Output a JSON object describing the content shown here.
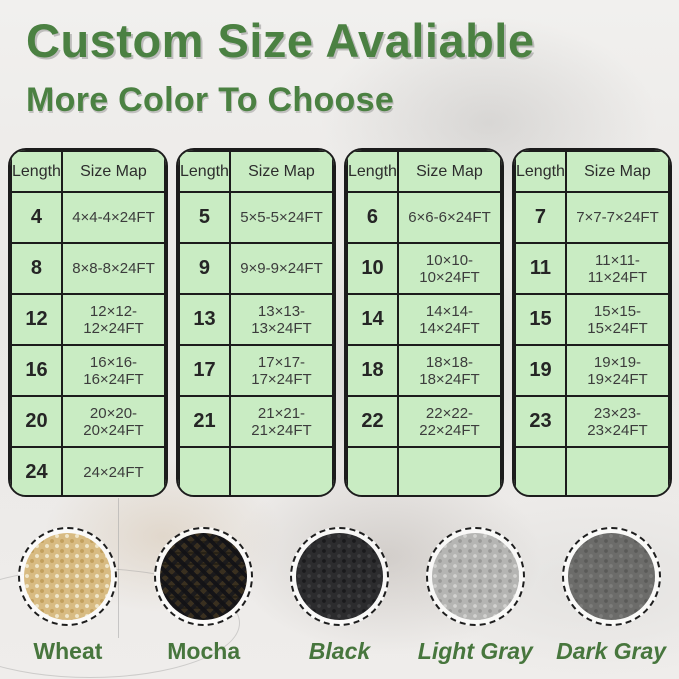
{
  "title": "Custom Size Avaliable",
  "subtitle": "More Color To Choose",
  "table_headers": {
    "length": "Length",
    "size_map": "Size Map"
  },
  "tables": [
    {
      "rows": [
        [
          "4",
          "4×4-4×24FT"
        ],
        [
          "8",
          "8×8-8×24FT"
        ],
        [
          "12",
          "12×12-12×24FT"
        ],
        [
          "16",
          "16×16-16×24FT"
        ],
        [
          "20",
          "20×20-20×24FT"
        ],
        [
          "24",
          "24×24FT"
        ]
      ]
    },
    {
      "rows": [
        [
          "5",
          "5×5-5×24FT"
        ],
        [
          "9",
          "9×9-9×24FT"
        ],
        [
          "13",
          "13×13-13×24FT"
        ],
        [
          "17",
          "17×17-17×24FT"
        ],
        [
          "21",
          "21×21-21×24FT"
        ],
        [
          "",
          ""
        ]
      ]
    },
    {
      "rows": [
        [
          "6",
          "6×6-6×24FT"
        ],
        [
          "10",
          "10×10-10×24FT"
        ],
        [
          "14",
          "14×14-14×24FT"
        ],
        [
          "18",
          "18×18-18×24FT"
        ],
        [
          "22",
          "22×22-22×24FT"
        ],
        [
          "",
          ""
        ]
      ]
    },
    {
      "rows": [
        [
          "7",
          "7×7-7×24FT"
        ],
        [
          "11",
          "11×11-11×24FT"
        ],
        [
          "15",
          "15×15-15×24FT"
        ],
        [
          "19",
          "19×19-19×24FT"
        ],
        [
          "23",
          "23×23-23×24FT"
        ],
        [
          "",
          ""
        ]
      ]
    }
  ],
  "swatches": [
    {
      "label": "Wheat",
      "hex": "#d8bb82"
    },
    {
      "label": "Mocha",
      "hex": "#3a3020"
    },
    {
      "label": "Black",
      "hex": "#2c2c2e"
    },
    {
      "label": "Light Gray",
      "hex": "#b5b5b3"
    },
    {
      "label": "Dark Gray",
      "hex": "#6c6c6a"
    }
  ],
  "palette": {
    "heading_green": "#4b8142",
    "label_green": "#47763d",
    "table_background": "#c9ecc3",
    "table_border": "#1c1c1c"
  }
}
